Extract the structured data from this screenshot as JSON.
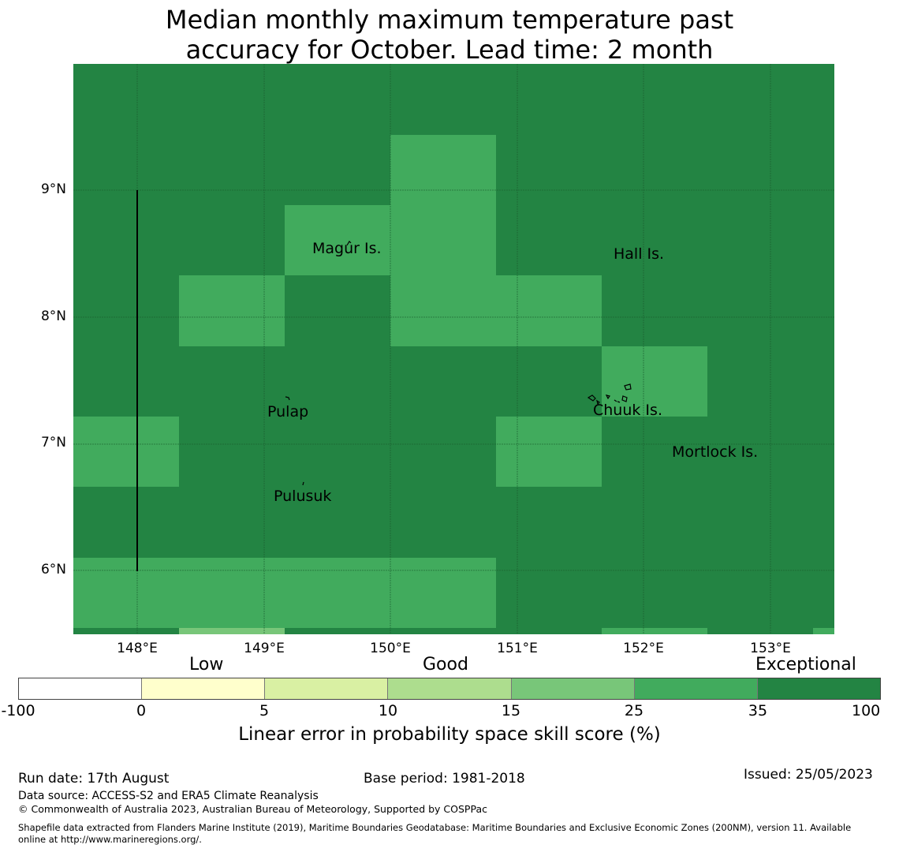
{
  "title": {
    "line1": "Median monthly maximum temperature past",
    "line2": "accuracy for October. Lead time: 2 month"
  },
  "map": {
    "lat_ticks": [
      "9°N",
      "8°N",
      "7°N",
      "6°N"
    ],
    "lon_ticks": [
      "148°E",
      "149°E",
      "150°E",
      "151°E",
      "152°E",
      "153°E"
    ],
    "place_labels": [
      "Magur Is.",
      "Hall Is.",
      "Pulap",
      "Chuuk Is.",
      "Mortlock Is.",
      "Pulusuk"
    ],
    "colors": {
      "exceptional": "#238443",
      "good_25_35": "#41ab5d",
      "good_15_25": "#78c679"
    }
  },
  "legend": {
    "categories": [
      "Low",
      "Good",
      "Exceptional"
    ],
    "colors": [
      "#ffffff",
      "#ffffcc",
      "#d9f0a3",
      "#addd8e",
      "#78c679",
      "#41ab5d",
      "#238443"
    ],
    "ticks": [
      "-100",
      "0",
      "5",
      "10",
      "15",
      "25",
      "35",
      "100"
    ],
    "label": "Linear error in probability space skill score (%)"
  },
  "footer": {
    "run_date": "Run date: 17th August",
    "base_period": "Base period: 1981-2018",
    "issued": "Issued: 25/05/2023",
    "data_source": "Data source: ACCESS-S2 and ERA5 Climate Reanalysis",
    "copyright": "© Commonwealth of Australia 2023, Australian Bureau of Meteorology, Supported by COSPPac",
    "shapefile": "Shapefile data extracted from Flanders Marine Institute (2019), Maritime Boundaries Geodatabase: Maritime Boundaries and Exclusive Economic Zones (200NM), version 11. Available",
    "shapefile_line2": "online at http://www.marineregions.org/."
  }
}
